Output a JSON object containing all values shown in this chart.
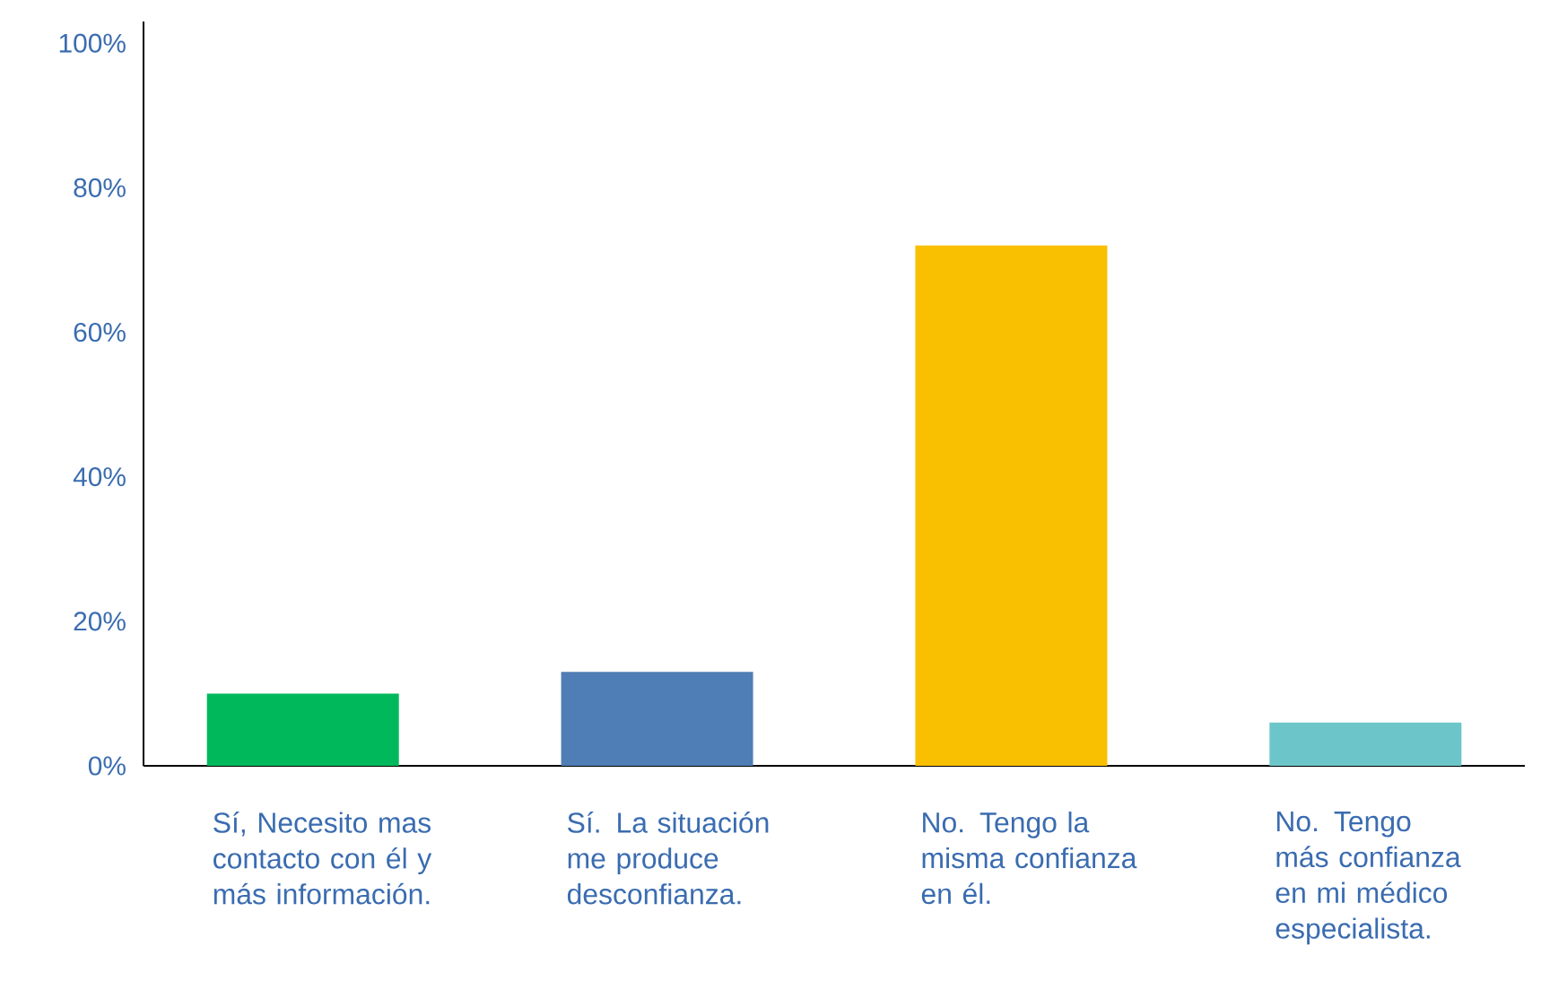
{
  "chart_data": {
    "type": "bar",
    "categories": [
      "Sí, Necesito mas contacto con él y más información.",
      "Sí. La situación me produce desconfianza.",
      "No. Tengo la misma confianza en él.",
      "No. Tengo más confianza en mi médico especialista."
    ],
    "values": [
      10,
      13,
      72,
      6
    ],
    "colors": [
      "#00b85c",
      "#4f7db5",
      "#f8c000",
      "#6cc6c9"
    ],
    "ylim": [
      0,
      103
    ],
    "yticks": [
      {
        "value": 0,
        "label": "0%"
      },
      {
        "value": 20,
        "label": "20%"
      },
      {
        "value": 40,
        "label": "40%"
      },
      {
        "value": 60,
        "label": "60%"
      },
      {
        "value": 80,
        "label": "80%"
      },
      {
        "value": 100,
        "label": "100%"
      }
    ],
    "grid": false
  }
}
